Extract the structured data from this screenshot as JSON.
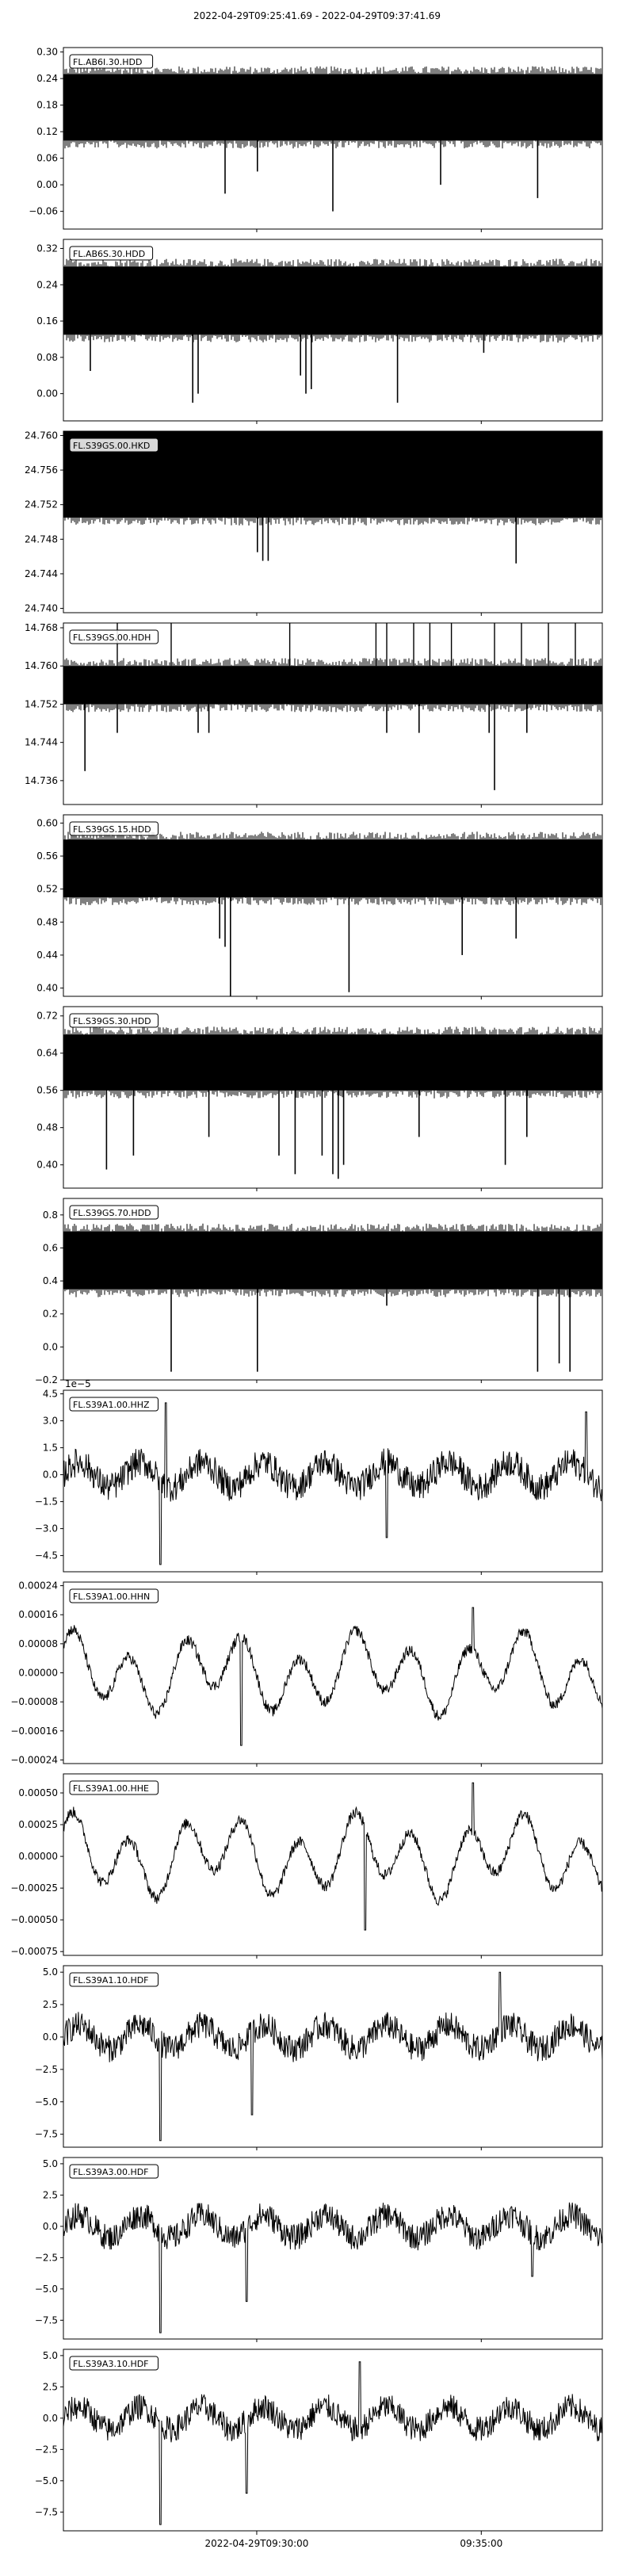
{
  "chart_data": {
    "type": "line",
    "title": "2022-04-29T09:25:41.69  -  2022-04-29T09:37:41.69",
    "x_ticks": [
      "2022-04-29T09:30:00",
      "09:35:00"
    ],
    "x_start": "2022-04-29T09:25:41.69",
    "x_end": "2022-04-29T09:37:41.69",
    "x_tick_seconds": [
      258.31,
      558.31
    ],
    "duration_seconds": 720,
    "series": [
      {
        "name": "FL.AB6I.30.HDD",
        "ylim": [
          -0.1,
          0.31
        ],
        "yticks": [
          "0.30",
          "0.24",
          "0.18",
          "0.12",
          "0.06",
          "0.00",
          "−0.06"
        ],
        "ytick_values": [
          0.3,
          0.24,
          0.18,
          0.12,
          0.06,
          0.0,
          -0.06
        ],
        "band": [
          0.1,
          0.25
        ],
        "spikes": [
          [
            0.3,
            -0.02
          ],
          [
            0.36,
            0.03
          ],
          [
            0.5,
            -0.06
          ],
          [
            0.7,
            0.0
          ],
          [
            0.88,
            -0.03
          ]
        ],
        "spikes_up": []
      },
      {
        "name": "FL.AB6S.30.HDD",
        "ylim": [
          -0.06,
          0.34
        ],
        "yticks": [
          "0.32",
          "0.24",
          "0.16",
          "0.08",
          "0.00"
        ],
        "ytick_values": [
          0.32,
          0.24,
          0.16,
          0.08,
          0.0
        ],
        "band": [
          0.13,
          0.28
        ],
        "spikes": [
          [
            0.05,
            0.05
          ],
          [
            0.24,
            -0.02
          ],
          [
            0.25,
            0.0
          ],
          [
            0.44,
            0.04
          ],
          [
            0.45,
            0.0
          ],
          [
            0.46,
            0.01
          ],
          [
            0.62,
            -0.02
          ],
          [
            0.78,
            0.09
          ]
        ],
        "spikes_up": []
      },
      {
        "name": "FL.S39GS.00.HKD",
        "ylim": [
          24.7395,
          24.7605
        ],
        "yticks": [
          "24.760",
          "24.756",
          "24.752",
          "24.748",
          "24.744",
          "24.740"
        ],
        "ytick_values": [
          24.76,
          24.756,
          24.752,
          24.748,
          24.744,
          24.74
        ],
        "band": [
          24.7505,
          24.7605
        ],
        "spikes": [
          [
            0.36,
            24.7465
          ],
          [
            0.37,
            24.7455
          ],
          [
            0.38,
            24.7455
          ],
          [
            0.84,
            24.7452
          ]
        ],
        "spikes_up": []
      },
      {
        "name": "FL.S39GS.00.HDH",
        "ylim": [
          14.731,
          14.769
        ],
        "yticks": [
          "14.768",
          "14.760",
          "14.752",
          "14.744",
          "14.736"
        ],
        "ytick_values": [
          14.768,
          14.76,
          14.752,
          14.744,
          14.736
        ],
        "band": [
          14.752,
          14.76
        ],
        "spikes": [
          [
            0.04,
            14.738
          ],
          [
            0.1,
            14.746
          ],
          [
            0.25,
            14.746
          ],
          [
            0.27,
            14.746
          ],
          [
            0.6,
            14.746
          ],
          [
            0.66,
            14.746
          ],
          [
            0.79,
            14.746
          ],
          [
            0.8,
            14.734
          ],
          [
            0.86,
            14.746
          ]
        ],
        "spikes_up": [
          [
            0.1,
            14.769
          ],
          [
            0.2,
            14.769
          ],
          [
            0.42,
            14.769
          ],
          [
            0.58,
            14.769
          ],
          [
            0.6,
            14.769
          ],
          [
            0.65,
            14.769
          ],
          [
            0.68,
            14.769
          ],
          [
            0.72,
            14.769
          ],
          [
            0.8,
            14.769
          ],
          [
            0.85,
            14.769
          ],
          [
            0.9,
            14.769
          ],
          [
            0.95,
            14.769
          ]
        ]
      },
      {
        "name": "FL.S39GS.15.HDD",
        "ylim": [
          0.39,
          0.61
        ],
        "yticks": [
          "0.60",
          "0.56",
          "0.52",
          "0.48",
          "0.44",
          "0.40"
        ],
        "ytick_values": [
          0.6,
          0.56,
          0.52,
          0.48,
          0.44,
          0.4
        ],
        "band": [
          0.51,
          0.58
        ],
        "spikes": [
          [
            0.29,
            0.46
          ],
          [
            0.3,
            0.45
          ],
          [
            0.31,
            0.39
          ],
          [
            0.53,
            0.395
          ],
          [
            0.74,
            0.44
          ],
          [
            0.84,
            0.46
          ]
        ],
        "spikes_up": []
      },
      {
        "name": "FL.S39GS.30.HDD",
        "ylim": [
          0.35,
          0.74
        ],
        "yticks": [
          "0.72",
          "0.64",
          "0.56",
          "0.48",
          "0.40"
        ],
        "ytick_values": [
          0.72,
          0.64,
          0.56,
          0.48,
          0.4
        ],
        "band": [
          0.56,
          0.68
        ],
        "spikes": [
          [
            0.08,
            0.39
          ],
          [
            0.13,
            0.42
          ],
          [
            0.27,
            0.46
          ],
          [
            0.4,
            0.42
          ],
          [
            0.43,
            0.38
          ],
          [
            0.48,
            0.42
          ],
          [
            0.5,
            0.38
          ],
          [
            0.51,
            0.37
          ],
          [
            0.52,
            0.4
          ],
          [
            0.66,
            0.46
          ],
          [
            0.82,
            0.4
          ],
          [
            0.86,
            0.46
          ]
        ],
        "spikes_up": []
      },
      {
        "name": "FL.S39GS.70.HDD",
        "ylim": [
          -0.2,
          0.9
        ],
        "yticks": [
          "0.8",
          "0.6",
          "0.4",
          "0.2",
          "0.0",
          "−0.2"
        ],
        "ytick_values": [
          0.8,
          0.6,
          0.4,
          0.2,
          0.0,
          -0.2
        ],
        "band": [
          0.35,
          0.7
        ],
        "spikes": [
          [
            0.2,
            -0.15
          ],
          [
            0.36,
            -0.15
          ],
          [
            0.6,
            0.25
          ],
          [
            0.88,
            -0.15
          ],
          [
            0.92,
            -0.1
          ],
          [
            0.94,
            -0.15
          ]
        ],
        "spikes_up": []
      },
      {
        "name": "FL.S39A1.00.HHZ",
        "ylim": [
          -5.4,
          4.7
        ],
        "yticks": [
          "4.5",
          "3.0",
          "1.5",
          "0.0",
          "−1.5",
          "−3.0",
          "−4.5"
        ],
        "ytick_values": [
          4.5,
          3.0,
          1.5,
          0.0,
          -1.5,
          -3.0,
          -4.5
        ],
        "exponent": "1e−5",
        "style": "noise",
        "amp": 1.0,
        "events": [
          [
            0.18,
            -5.0
          ],
          [
            0.19,
            4.0
          ],
          [
            0.6,
            -3.5
          ],
          [
            0.97,
            3.5
          ]
        ]
      },
      {
        "name": "FL.S39A1.00.HHN",
        "ylim": [
          -0.00025,
          0.00025
        ],
        "yticks": [
          "0.00024",
          "0.00016",
          "0.00008",
          "0.00000",
          "−0.00008",
          "−0.00016",
          "−0.00024"
        ],
        "ytick_values": [
          0.00024,
          0.00016,
          8e-05,
          0.0,
          -8e-05,
          -0.00016,
          -0.00024
        ],
        "style": "wave",
        "amp": 0.00012,
        "events": [
          [
            0.33,
            -0.0002
          ],
          [
            0.76,
            0.00018
          ]
        ]
      },
      {
        "name": "FL.S39A1.00.HHE",
        "ylim": [
          -0.00078,
          0.00065
        ],
        "yticks": [
          "0.00050",
          "0.00025",
          "0.00000",
          "−0.00025",
          "−0.00050",
          "−0.00075"
        ],
        "ytick_values": [
          0.0005,
          0.00025,
          0.0,
          -0.00025,
          -0.0005,
          -0.00075
        ],
        "style": "wave",
        "amp": 0.00035,
        "events": [
          [
            0.56,
            -0.00058
          ],
          [
            0.76,
            0.00058
          ]
        ]
      },
      {
        "name": "FL.S39A1.10.HDF",
        "ylim": [
          -8.5,
          5.5
        ],
        "yticks": [
          "5.0",
          "2.5",
          "0.0",
          "−2.5",
          "−5.0",
          "−7.5"
        ],
        "ytick_values": [
          5.0,
          2.5,
          0.0,
          -2.5,
          -5.0,
          -7.5
        ],
        "style": "noise",
        "amp": 1.3,
        "events": [
          [
            0.18,
            -8.0
          ],
          [
            0.35,
            -6.0
          ],
          [
            0.81,
            5.0
          ]
        ]
      },
      {
        "name": "FL.S39A3.00.HDF",
        "ylim": [
          -9.0,
          5.5
        ],
        "yticks": [
          "5.0",
          "2.5",
          "0.0",
          "−2.5",
          "−5.0",
          "−7.5"
        ],
        "ytick_values": [
          5.0,
          2.5,
          0.0,
          -2.5,
          -5.0,
          -7.5
        ],
        "style": "noise",
        "amp": 1.3,
        "events": [
          [
            0.18,
            -8.5
          ],
          [
            0.34,
            -6.0
          ],
          [
            0.87,
            -4.0
          ]
        ]
      },
      {
        "name": "FL.S39A3.10.HDF",
        "ylim": [
          -9.0,
          5.5
        ],
        "yticks": [
          "5.0",
          "2.5",
          "0.0",
          "−2.5",
          "−5.0",
          "−7.5"
        ],
        "ytick_values": [
          5.0,
          2.5,
          0.0,
          -2.5,
          -5.0,
          -7.5
        ],
        "style": "noise",
        "amp": 1.3,
        "events": [
          [
            0.18,
            -8.5
          ],
          [
            0.34,
            -6.0
          ],
          [
            0.55,
            4.5
          ]
        ]
      }
    ]
  }
}
